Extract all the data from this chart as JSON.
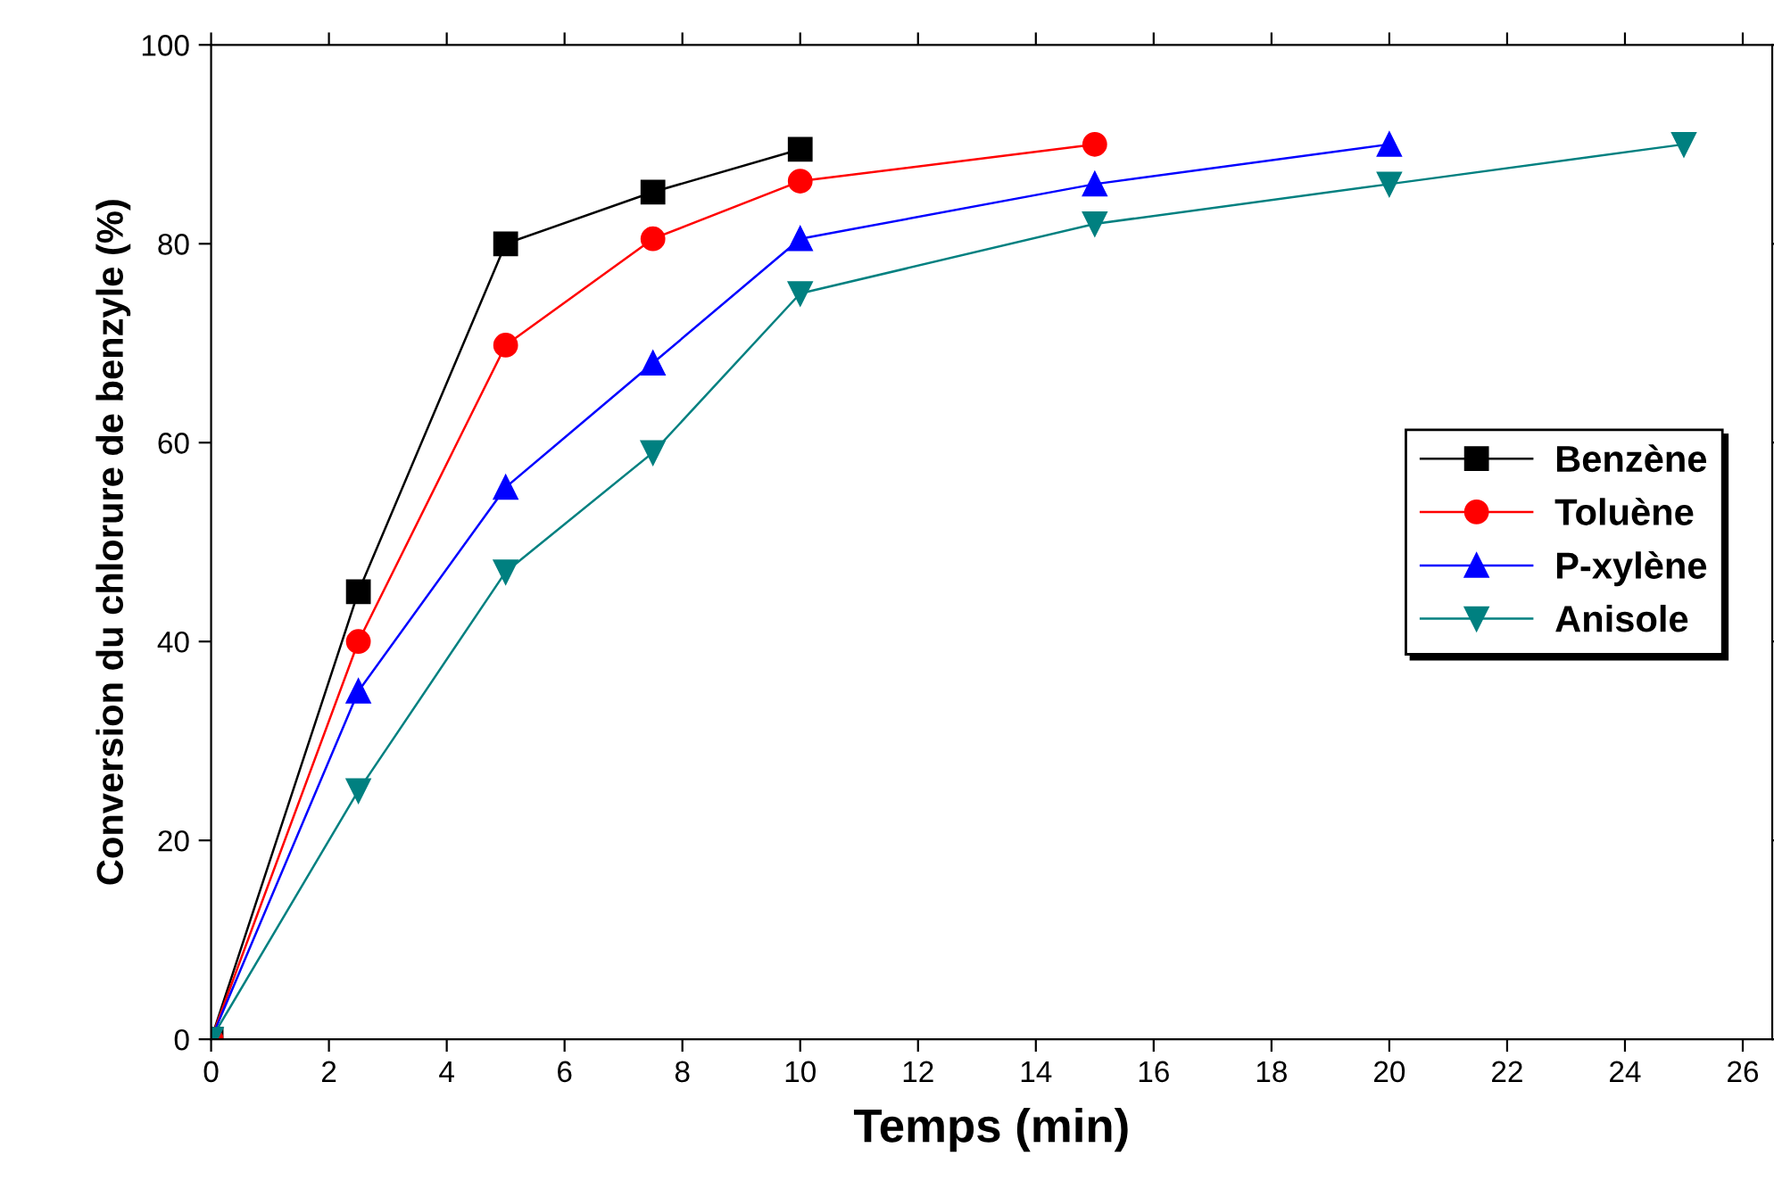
{
  "chart_data": {
    "type": "line",
    "xlabel": "Temps (min)",
    "ylabel": "Conversion du chlorure de benzyle (%)",
    "xlim": [
      0,
      26.5
    ],
    "xticks": [
      0,
      2,
      4,
      6,
      8,
      10,
      12,
      14,
      16,
      18,
      20,
      22,
      24,
      26
    ],
    "ylim": [
      0,
      100
    ],
    "yticks": [
      0,
      20,
      40,
      60,
      80,
      100
    ],
    "grid": false,
    "legend": "center right",
    "line_style": "solid",
    "series": [
      {
        "name": "Benzène",
        "color": "#000000",
        "marker": "square",
        "x": [
          0,
          2.5,
          5,
          7.5,
          10
        ],
        "values": [
          0,
          45,
          80,
          85.2,
          89.5
        ]
      },
      {
        "name": "Toluène",
        "color": "#ff0000",
        "marker": "circle",
        "x": [
          0,
          2.5,
          5,
          7.5,
          10,
          15
        ],
        "values": [
          0,
          40,
          69.8,
          80.5,
          86.3,
          90
        ]
      },
      {
        "name": "P-xylène",
        "color": "#0000ff",
        "marker": "triangle",
        "x": [
          0,
          2.5,
          5,
          7.5,
          10,
          15,
          20
        ],
        "values": [
          0,
          35,
          55.5,
          68,
          80.5,
          86,
          90
        ]
      },
      {
        "name": "Anisole",
        "color": "#008080",
        "marker": "triangle_down",
        "x": [
          0,
          2.5,
          5,
          7.5,
          10,
          15,
          20,
          25
        ],
        "values": [
          0,
          25,
          47,
          59,
          75,
          82,
          86,
          90
        ]
      }
    ]
  }
}
